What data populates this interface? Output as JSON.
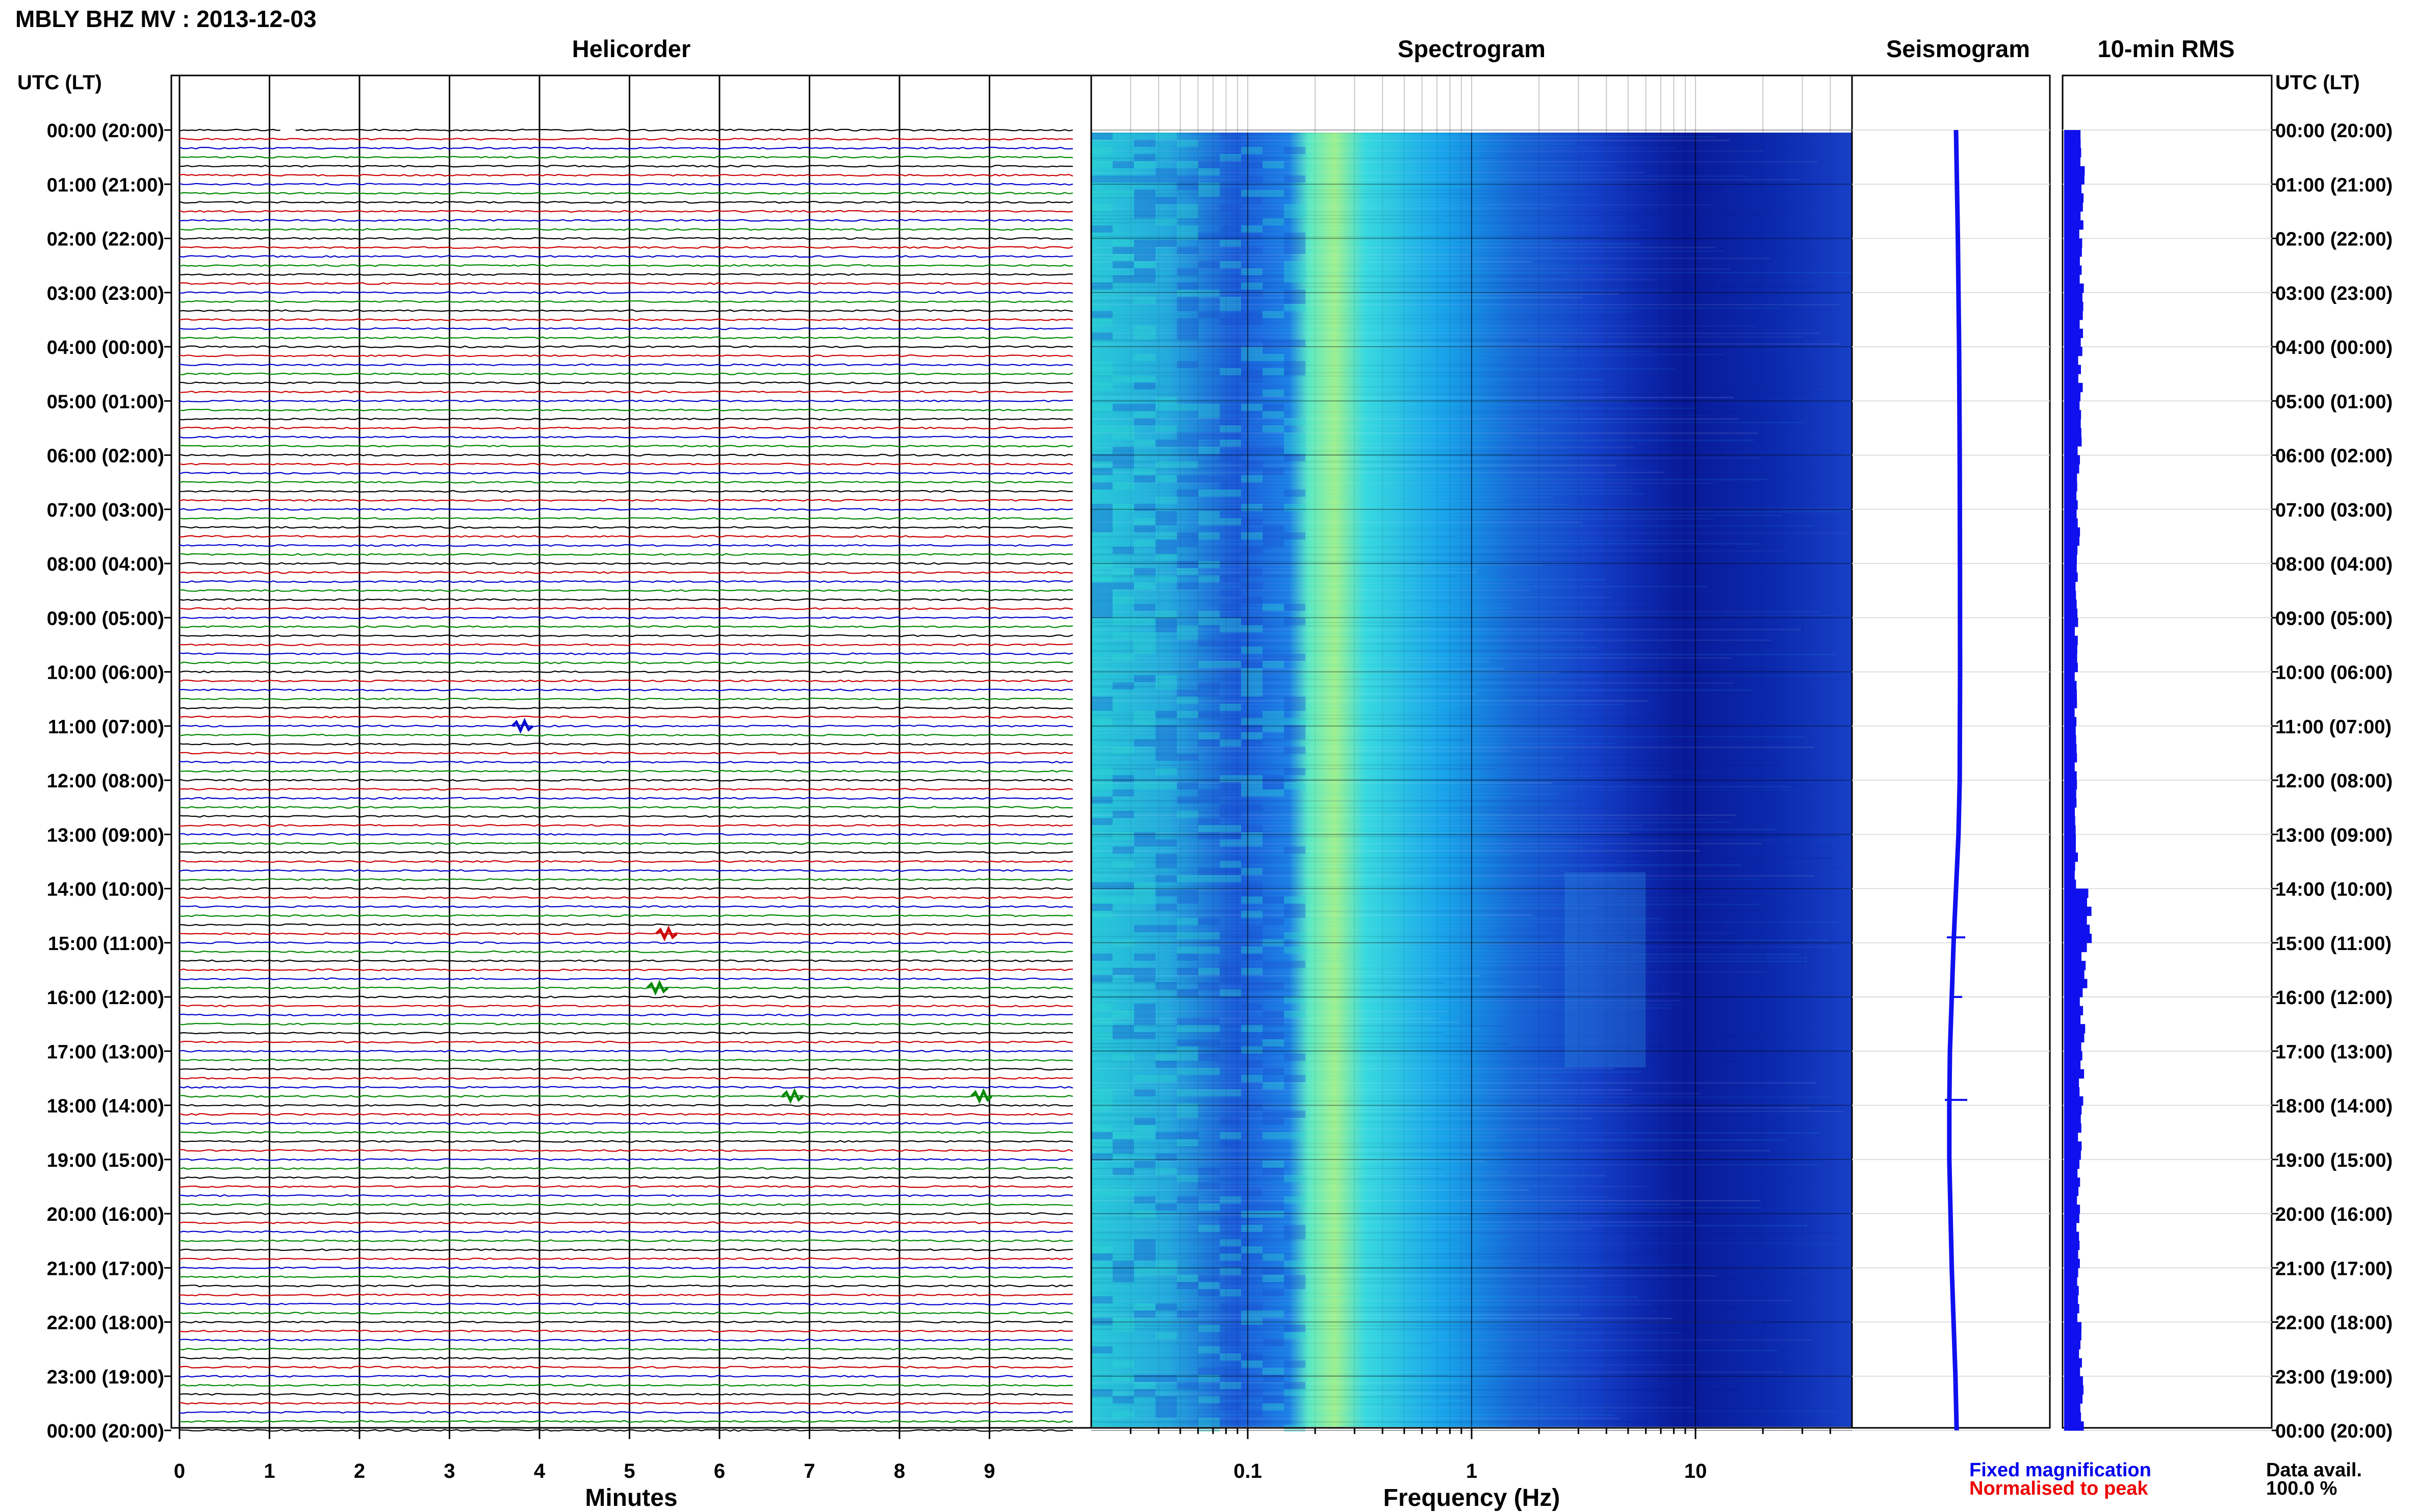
{
  "header": {
    "title": "MBLY BHZ MV : 2013-12-03"
  },
  "panels": {
    "helicorder": "Helicorder",
    "spectrogram": "Spectrogram",
    "seismogram": "Seismogram",
    "rms": "10-min RMS"
  },
  "time_axis": {
    "header_left": "UTC (LT)",
    "header_right": "UTC (LT)"
  },
  "footer": {
    "fixed_magnification": "Fixed magnification",
    "normalised_to_peak": "Normalised to peak",
    "data_avail_label": "Data avail.",
    "data_avail_value": "100.0 %"
  },
  "colors": {
    "trace_colors": [
      "#000000",
      "#cc0000",
      "#0000cc",
      "#008800"
    ],
    "fixed_magnification": "#0000ee",
    "normalised_to_peak": "#ee0000",
    "seismogram": "#1010ee",
    "rms": "#1010ee"
  },
  "chart_data": [
    {
      "type": "line",
      "panel": "helicorder",
      "xlabel": "Minutes",
      "x_ticks": [
        0,
        1,
        2,
        3,
        4,
        5,
        6,
        7,
        8,
        9
      ],
      "xlim": [
        0,
        10
      ],
      "row_minutes": 10,
      "y_tick_labels": [
        "00:00 (20:00)",
        "01:00 (21:00)",
        "02:00 (22:00)",
        "03:00 (23:00)",
        "04:00 (00:00)",
        "05:00 (01:00)",
        "06:00 (02:00)",
        "07:00 (03:00)",
        "08:00 (04:00)",
        "09:00 (05:00)",
        "10:00 (06:00)",
        "11:00 (07:00)",
        "12:00 (08:00)",
        "13:00 (09:00)",
        "14:00 (10:00)",
        "15:00 (11:00)",
        "16:00 (12:00)",
        "17:00 (13:00)",
        "18:00 (14:00)",
        "19:00 (15:00)",
        "20:00 (16:00)",
        "21:00 (17:00)",
        "22:00 (18:00)",
        "23:00 (19:00)",
        "00:00 (20:00)"
      ],
      "events": [
        {
          "hour": 11,
          "row": 0,
          "minute": 3.8
        },
        {
          "hour": 14,
          "row": 5,
          "minute": 5.4
        },
        {
          "hour": 15,
          "row": 5,
          "minute": 5.3
        },
        {
          "hour": 17,
          "row": 5,
          "minute": 6.8
        },
        {
          "hour": 17,
          "row": 5,
          "minute": 8.9
        }
      ]
    },
    {
      "type": "heatmap",
      "panel": "spectrogram",
      "xlabel": "Frequency (Hz)",
      "x_scale": "log",
      "xlim": [
        0.02,
        50
      ],
      "x_ticks": [
        0.1,
        1,
        10
      ],
      "x_tick_labels": [
        "0.1",
        "1",
        "10"
      ]
    },
    {
      "type": "line",
      "panel": "seismogram",
      "hours": [
        0,
        2,
        4,
        6,
        8,
        10,
        12,
        13,
        14,
        15,
        16,
        17,
        18,
        19,
        20,
        21,
        22,
        23,
        24
      ],
      "offset": [
        0.0,
        0.15,
        0.25,
        0.3,
        0.32,
        0.33,
        0.3,
        0.2,
        0.0,
        -0.2,
        -0.35,
        -0.5,
        -0.55,
        -0.55,
        -0.45,
        -0.35,
        -0.2,
        -0.05,
        0.05
      ]
    },
    {
      "type": "bar",
      "panel": "rms",
      "orientation": "horizontal",
      "interval_minutes": 10,
      "hourly_level": [
        0.9,
        0.85,
        0.9,
        0.85,
        0.8,
        0.75,
        0.7,
        0.7,
        0.65,
        0.6,
        0.55,
        0.55,
        0.55,
        0.6,
        1.2,
        1.0,
        0.9,
        0.85,
        0.75,
        0.7,
        0.7,
        0.75,
        0.8,
        0.85
      ]
    }
  ]
}
